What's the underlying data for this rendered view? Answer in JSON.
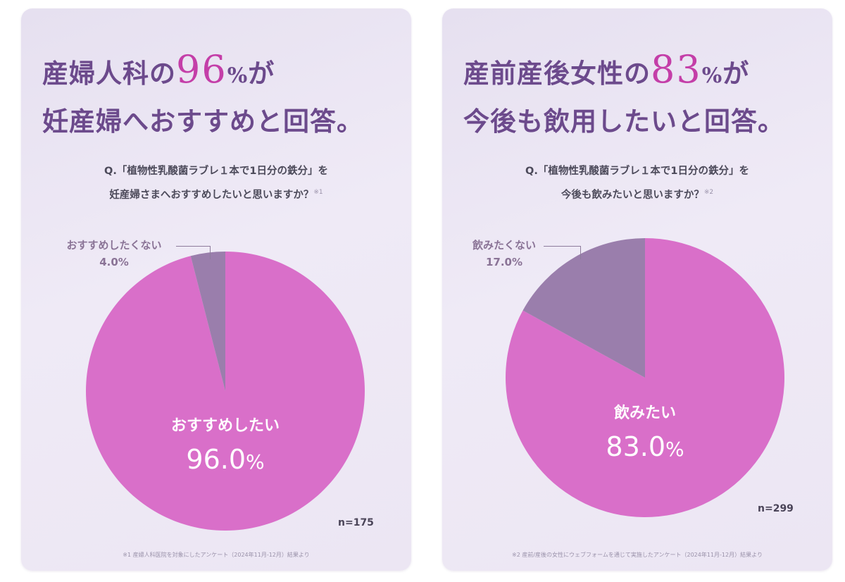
{
  "colors": {
    "accent": "#d96fc9",
    "secondary": "#9a7eac",
    "headline": "#6c4a8c",
    "highlight": "#c43ea8"
  },
  "panels": [
    {
      "headline_prefix": "産婦人科の",
      "headline_number": "96",
      "headline_pct": "%",
      "headline_suffix": "が",
      "headline_line2": "妊産婦へおすすめと回答。",
      "question_line1": "Q.「植物性乳酸菌ラブレ１本で1日分の鉄分」を",
      "question_line2": "妊産婦さまへおすすめしたいと思いますか？",
      "question_note": "※1",
      "n": "n=175",
      "footnote": "※1 産婦人科医院を対象にしたアンケート（2024年11月-12月）結果より"
    },
    {
      "headline_prefix": "産前産後女性の",
      "headline_number": "83",
      "headline_pct": "%",
      "headline_suffix": "が",
      "headline_line2": "今後も飲用したいと回答。",
      "question_line1": "Q.「植物性乳酸菌ラブレ１本で1日分の鉄分」を",
      "question_line2": "今後も飲みたいと思いますか？",
      "question_note": "※2",
      "n": "n=299",
      "footnote": "※2 産前/産後の女性にウェブフォームを通じて実施したアンケート（2024年11月-12月）結果より"
    }
  ],
  "chart_data": [
    {
      "type": "pie",
      "slices": [
        {
          "label": "おすすめしたい",
          "value": 96.0,
          "value_label": "96.0",
          "unit": "%"
        },
        {
          "label": "おすすめしたくない",
          "value": 4.0,
          "value_label": "4.0%"
        }
      ],
      "n": 175
    },
    {
      "type": "pie",
      "slices": [
        {
          "label": "飲みたい",
          "value": 83.0,
          "value_label": "83.0",
          "unit": "%"
        },
        {
          "label": "飲みたくない",
          "value": 17.0,
          "value_label": "17.0%"
        }
      ],
      "n": 299
    }
  ]
}
